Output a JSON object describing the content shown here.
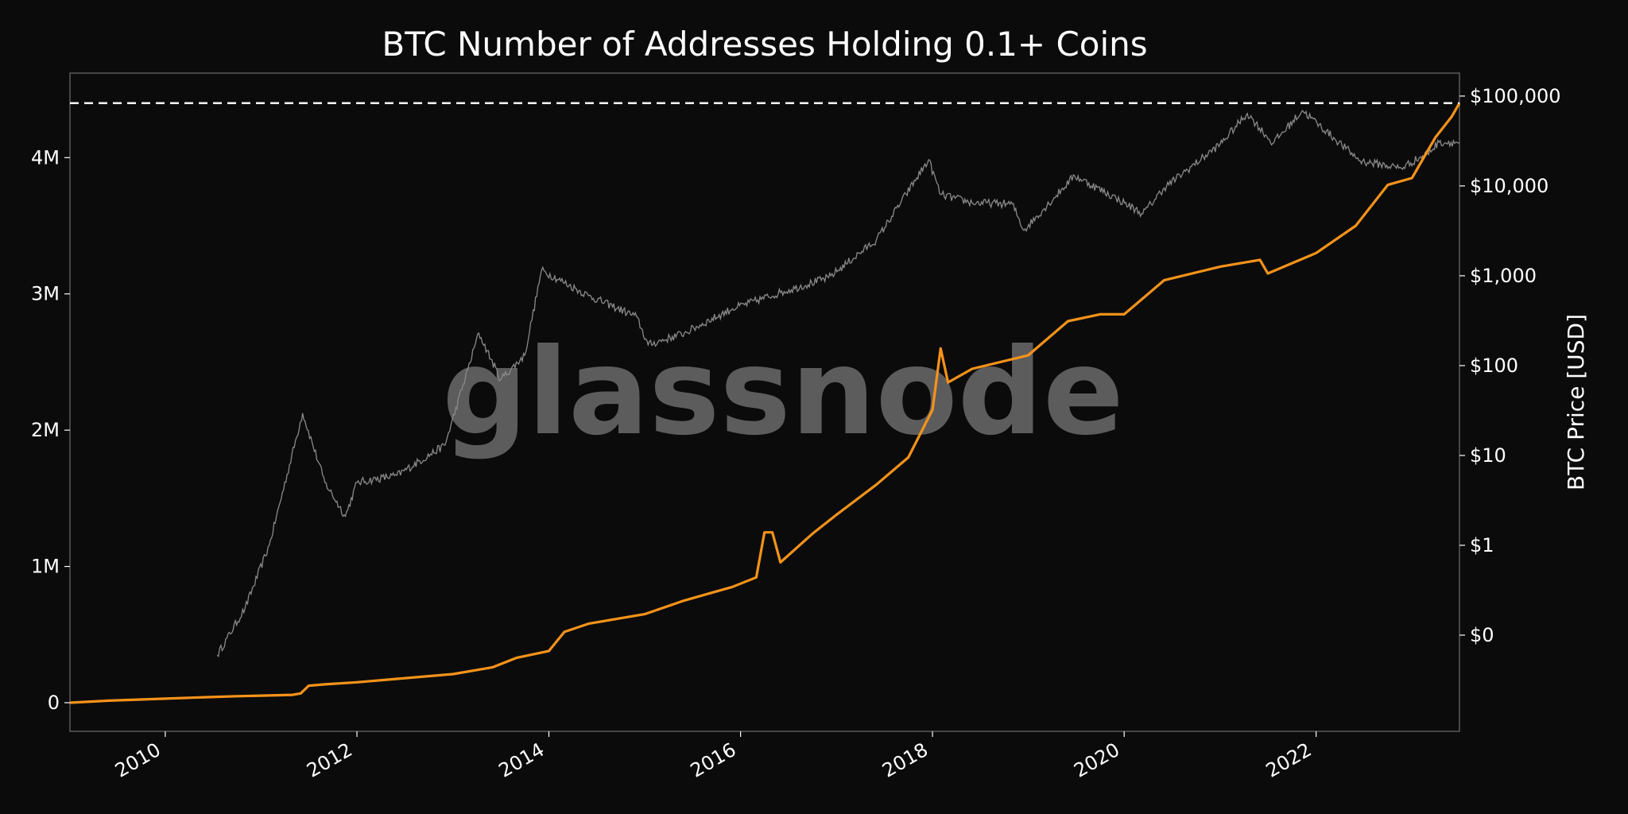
{
  "chart_data": {
    "type": "line",
    "title": "BTC Number of Addresses Holding 0.1+ Coins",
    "watermark": "glassnode",
    "xlabel": "",
    "ylabel_left": "",
    "ylabel_right": "BTC Price [USD]",
    "x_ticks": [
      "2010",
      "2012",
      "2014",
      "2016",
      "2018",
      "2020",
      "2022"
    ],
    "y_left_ticks": [
      {
        "value": 0,
        "label": "0"
      },
      {
        "value": 1000000,
        "label": "1M"
      },
      {
        "value": 2000000,
        "label": "2M"
      },
      {
        "value": 3000000,
        "label": "3M"
      },
      {
        "value": 4000000,
        "label": "4M"
      }
    ],
    "y_right_ticks": [
      {
        "value": 0.1,
        "label": "$0"
      },
      {
        "value": 1,
        "label": "$1"
      },
      {
        "value": 10,
        "label": "$10"
      },
      {
        "value": 100,
        "label": "$100"
      },
      {
        "value": 1000,
        "label": "$1,000"
      },
      {
        "value": 10000,
        "label": "$10,000"
      },
      {
        "value": 100000,
        "label": "$100,000"
      }
    ],
    "x_range": [
      "2009-01-03",
      "2023-07-01"
    ],
    "y_left_range": [
      -210000,
      4620000
    ],
    "y_right_scale": "log",
    "y_right_range": [
      0.0085,
      180000
    ],
    "grid": false,
    "reference_line": {
      "series": "Addresses Holding 0.1+ Coins",
      "value": 4400000,
      "style": "dashed",
      "color": "#ffffff"
    },
    "series": [
      {
        "name": "",
        "axis": "left",
        "color": "#f7931a",
        "points": [
          [
            "2009-01-03",
            0
          ],
          [
            "2009-06-01",
            15000
          ],
          [
            "2010-01-01",
            30000
          ],
          [
            "2010-06-01",
            40000
          ],
          [
            "2010-10-01",
            48000
          ],
          [
            "2011-01-01",
            52000
          ],
          [
            "2011-05-01",
            58000
          ],
          [
            "2011-06-01",
            68000
          ],
          [
            "2011-07-01",
            125000
          ],
          [
            "2011-09-01",
            135000
          ],
          [
            "2012-01-01",
            150000
          ],
          [
            "2012-06-01",
            175000
          ],
          [
            "2013-01-01",
            210000
          ],
          [
            "2013-06-01",
            260000
          ],
          [
            "2013-09-01",
            330000
          ],
          [
            "2014-01-01",
            380000
          ],
          [
            "2014-03-01",
            520000
          ],
          [
            "2014-06-01",
            580000
          ],
          [
            "2015-01-01",
            650000
          ],
          [
            "2015-06-01",
            750000
          ],
          [
            "2015-12-01",
            850000
          ],
          [
            "2016-03-01",
            920000
          ],
          [
            "2016-04-01",
            1250000
          ],
          [
            "2016-05-01",
            1250000
          ],
          [
            "2016-06-01",
            1030000
          ],
          [
            "2016-10-01",
            1240000
          ],
          [
            "2017-01-01",
            1380000
          ],
          [
            "2017-06-01",
            1600000
          ],
          [
            "2017-10-01",
            1800000
          ],
          [
            "2018-01-01",
            2150000
          ],
          [
            "2018-02-01",
            2600000
          ],
          [
            "2018-03-01",
            2350000
          ],
          [
            "2018-06-01",
            2450000
          ],
          [
            "2019-01-01",
            2550000
          ],
          [
            "2019-06-01",
            2800000
          ],
          [
            "2019-10-01",
            2850000
          ],
          [
            "2020-01-01",
            2850000
          ],
          [
            "2020-06-01",
            3100000
          ],
          [
            "2021-01-01",
            3200000
          ],
          [
            "2021-06-01",
            3250000
          ],
          [
            "2021-07-01",
            3150000
          ],
          [
            "2022-01-01",
            3300000
          ],
          [
            "2022-06-01",
            3500000
          ],
          [
            "2022-10-01",
            3800000
          ],
          [
            "2023-01-01",
            3850000
          ],
          [
            "2023-04-01",
            4150000
          ],
          [
            "2023-06-01",
            4300000
          ],
          [
            "2023-07-01",
            4400000
          ]
        ]
      },
      {
        "name": "",
        "axis": "right",
        "color": "#8a8a8a",
        "points": [
          [
            "2010-07-18",
            0.06
          ],
          [
            "2010-11-01",
            0.2
          ],
          [
            "2011-02-01",
            1.0
          ],
          [
            "2011-06-08",
            29.6
          ],
          [
            "2011-09-01",
            5.0
          ],
          [
            "2011-11-18",
            2.1
          ],
          [
            "2012-01-01",
            5.0
          ],
          [
            "2012-06-01",
            6.0
          ],
          [
            "2012-12-01",
            13.0
          ],
          [
            "2013-04-09",
            230
          ],
          [
            "2013-07-01",
            70
          ],
          [
            "2013-10-01",
            130
          ],
          [
            "2013-12-04",
            1150
          ],
          [
            "2014-06-01",
            600
          ],
          [
            "2014-12-01",
            350
          ],
          [
            "2015-01-14",
            170
          ],
          [
            "2015-06-01",
            230
          ],
          [
            "2015-12-01",
            430
          ],
          [
            "2016-06-01",
            650
          ],
          [
            "2016-12-01",
            950
          ],
          [
            "2017-06-01",
            2500
          ],
          [
            "2017-12-17",
            19500
          ],
          [
            "2018-02-01",
            8000
          ],
          [
            "2018-06-01",
            6500
          ],
          [
            "2018-11-01",
            6300
          ],
          [
            "2018-12-15",
            3200
          ],
          [
            "2019-06-26",
            13000
          ],
          [
            "2019-12-01",
            7300
          ],
          [
            "2020-03-12",
            4900
          ],
          [
            "2020-06-01",
            9500
          ],
          [
            "2020-12-31",
            29000
          ],
          [
            "2021-04-14",
            64000
          ],
          [
            "2021-07-20",
            29800
          ],
          [
            "2021-11-10",
            69000
          ],
          [
            "2022-06-18",
            19000
          ],
          [
            "2022-11-21",
            15800
          ],
          [
            "2023-03-01",
            23000
          ],
          [
            "2023-04-14",
            30500
          ],
          [
            "2023-07-01",
            30500
          ]
        ]
      }
    ]
  }
}
